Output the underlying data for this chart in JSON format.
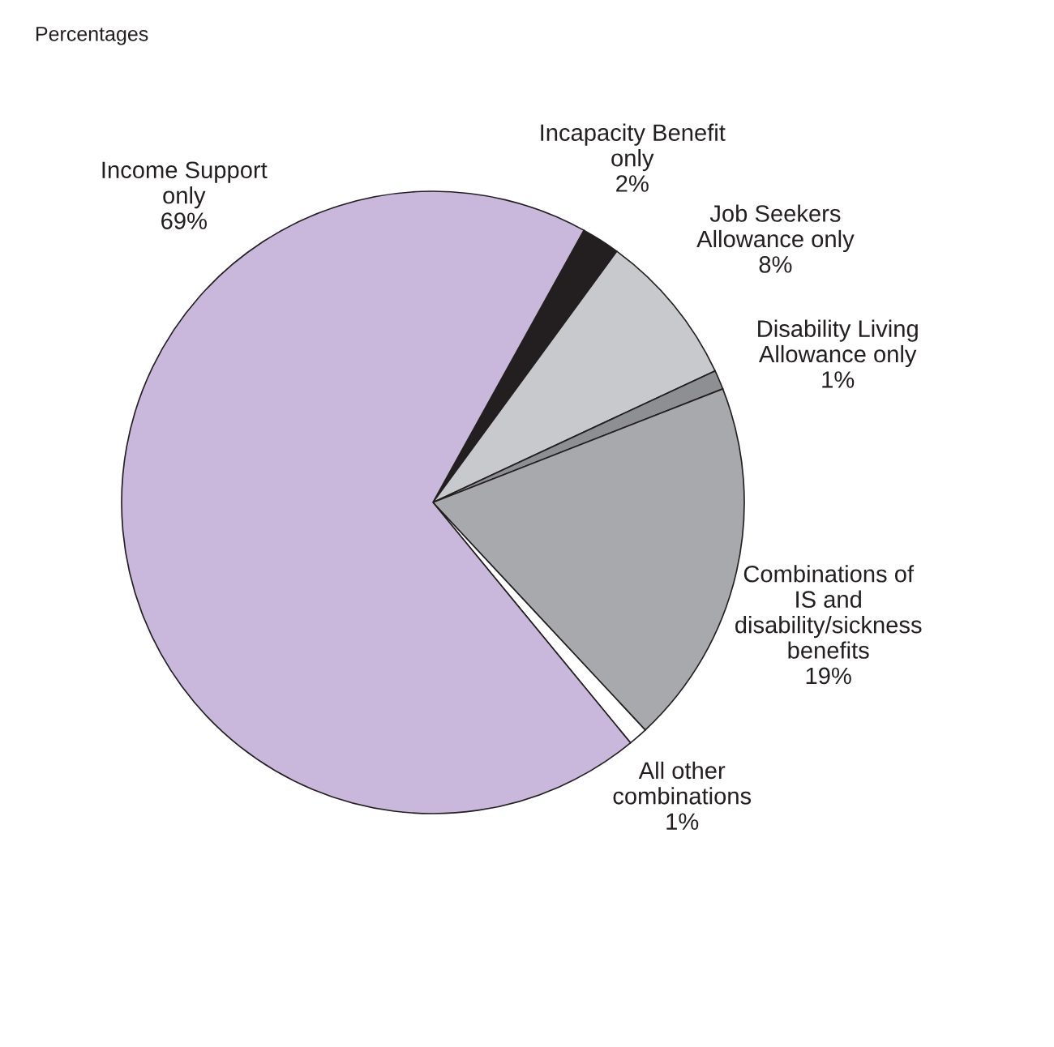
{
  "chart_data": {
    "type": "pie",
    "annotations": [
      "Percentages"
    ],
    "categories": [
      "Incapacity Benefit\nonly",
      "Job Seekers\nAllowance only",
      "Disability Living\nAllowance only",
      "Combinations of\nIS and\ndisability/sickness\nbenefits",
      "All other\ncombinations",
      "Income Support\nonly"
    ],
    "values": [
      2,
      8,
      1,
      19,
      1,
      69
    ],
    "value_labels": [
      "2%",
      "8%",
      "1%",
      "19%",
      "1%",
      "69%"
    ],
    "colors": [
      "#231f20",
      "#c8c9cc",
      "#8e8f92",
      "#a7a9ac",
      "#ffffff",
      "#c9b8dc"
    ]
  }
}
